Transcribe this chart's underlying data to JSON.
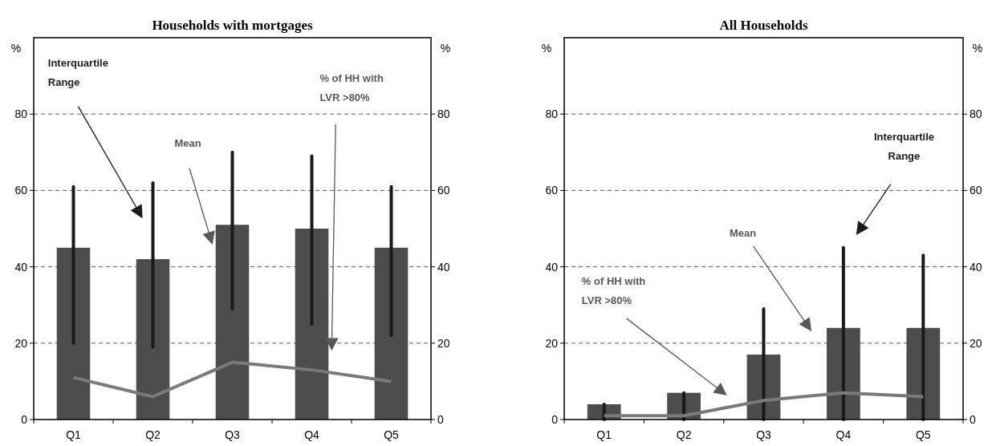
{
  "chart_data": [
    {
      "type": "bar",
      "title": "Households with mortgages",
      "categories": [
        "Q1",
        "Q2",
        "Q3",
        "Q4",
        "Q5"
      ],
      "ylabel": "%",
      "y2label": "%",
      "ylim": [
        0,
        100
      ],
      "yticks": [
        0,
        20,
        40,
        60,
        80
      ],
      "y2lim": [
        0,
        100
      ],
      "y2ticks": [
        0,
        20,
        40,
        60,
        80
      ],
      "grid": "y",
      "series": [
        {
          "color": "#4d4d4d",
          "values": [
            45,
            42,
            51,
            50,
            45
          ],
          "errors": [
            [
              20,
              61
            ],
            [
              19,
              62
            ],
            [
              29,
              70
            ],
            [
              25,
              69
            ],
            [
              22,
              61
            ]
          ]
        },
        {
          "type": "line",
          "color": "#7a7a7a",
          "values": [
            11,
            6,
            15,
            13,
            10
          ]
        }
      ],
      "annotations": [
        "Interquartile Range",
        "Mean",
        "% of HH with LVR >80%"
      ]
    },
    {
      "type": "bar",
      "title": "All Households",
      "categories": [
        "Q1",
        "Q2",
        "Q3",
        "Q4",
        "Q5"
      ],
      "ylabel": "%",
      "y2label": "%",
      "ylim": [
        0,
        100
      ],
      "yticks": [
        0,
        20,
        40,
        60,
        80
      ],
      "y2lim": [
        0,
        100
      ],
      "y2ticks": [
        0,
        20,
        40,
        60,
        80
      ],
      "grid": "y",
      "series": [
        {
          "color": "#4d4d4d",
          "values": [
            4,
            7,
            17,
            24,
            24
          ],
          "errors": [
            [
              0,
              4
            ],
            [
              0,
              7
            ],
            [
              0,
              29
            ],
            [
              0,
              45
            ],
            [
              0,
              43
            ]
          ]
        },
        {
          "type": "line",
          "color": "#7a7a7a",
          "values": [
            1,
            1,
            5,
            7,
            6
          ]
        }
      ],
      "annotations": [
        "Interquartile Range",
        "Mean",
        "% of HH with LVR >80%"
      ]
    }
  ]
}
